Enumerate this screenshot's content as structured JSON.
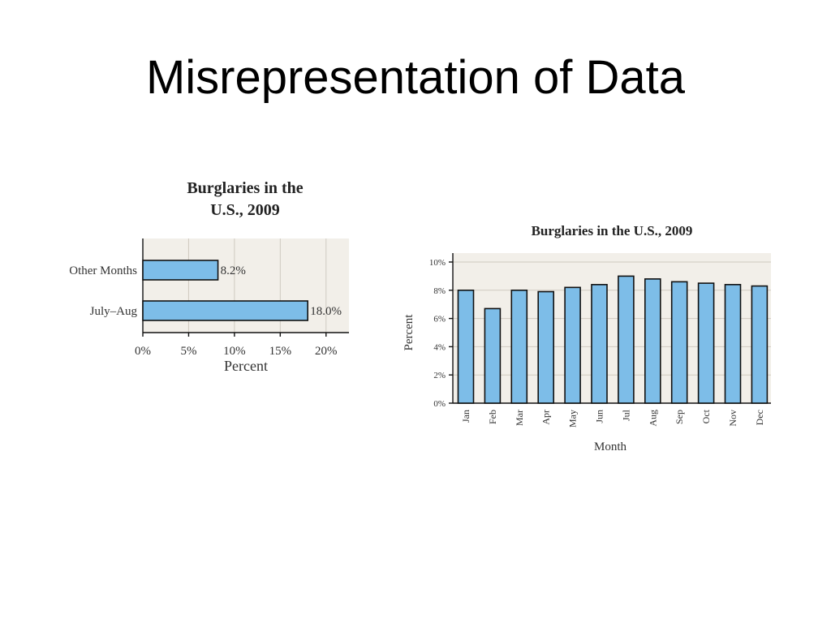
{
  "slide": {
    "title": "Misrepresentation of Data"
  },
  "chart_data": [
    {
      "type": "bar",
      "orientation": "horizontal",
      "title": "Burglaries in the U.S., 2009",
      "title_lines": [
        "Burglaries in the",
        "U.S., 2009"
      ],
      "categories": [
        "Other Months",
        "July–Aug"
      ],
      "values": [
        8.2,
        18.0
      ],
      "data_labels": [
        "8.2%",
        "18.0%"
      ],
      "xlabel": "Percent",
      "ylabel": "",
      "xlim": [
        0,
        22.5
      ],
      "ticks": [
        0,
        5,
        10,
        15,
        20
      ],
      "tick_labels": [
        "0%",
        "5%",
        "10%",
        "15%",
        "20%"
      ],
      "grid": true,
      "colors": {
        "bar": "#7dbde8",
        "background": "#f2efe9"
      }
    },
    {
      "type": "bar",
      "orientation": "vertical",
      "title": "Burglaries in the U.S., 2009",
      "categories": [
        "Jan",
        "Feb",
        "Mar",
        "Apr",
        "May",
        "Jun",
        "Jul",
        "Aug",
        "Sep",
        "Oct",
        "Nov",
        "Dec"
      ],
      "values": [
        8.0,
        6.7,
        8.0,
        7.9,
        8.2,
        8.4,
        9.0,
        8.8,
        8.6,
        8.5,
        8.4,
        8.3
      ],
      "xlabel": "Month",
      "ylabel": "Percent",
      "ylim": [
        0,
        10
      ],
      "ticks": [
        0,
        2,
        4,
        6,
        8,
        10
      ],
      "tick_labels": [
        "0%",
        "2%",
        "4%",
        "6%",
        "8%",
        "10%"
      ],
      "grid": true,
      "colors": {
        "bar": "#7dbde8",
        "background": "#f2efe9"
      }
    }
  ]
}
